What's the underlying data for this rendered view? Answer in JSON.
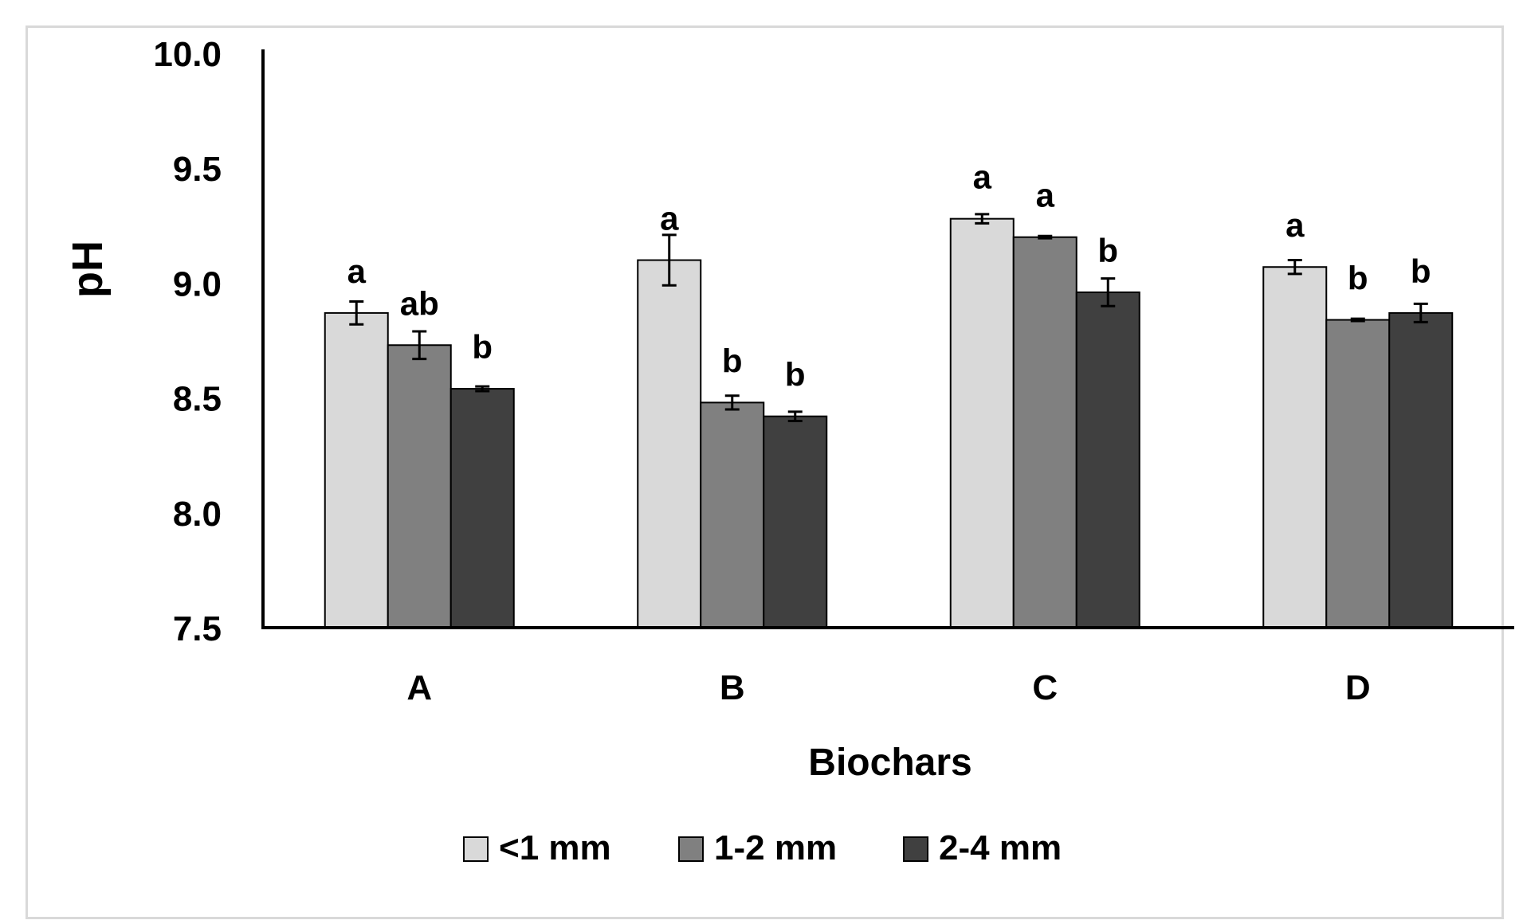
{
  "chart_data": {
    "type": "bar",
    "title": "",
    "xlabel": "Biochars",
    "ylabel": "pH",
    "ylim": [
      7.5,
      10.0
    ],
    "yticks": [
      7.5,
      8.0,
      8.5,
      9.0,
      9.5,
      10.0
    ],
    "ytick_labels": [
      "7.5",
      "8.0",
      "8.5",
      "9.0",
      "9.5",
      "10.0"
    ],
    "categories": [
      "A",
      "B",
      "C",
      "D"
    ],
    "grid": false,
    "legend_position": "bottom",
    "series": [
      {
        "name": "<1 mm",
        "color": "#d9d9d9",
        "values": [
          8.87,
          9.1,
          9.28,
          9.07
        ],
        "errors": [
          0.05,
          0.11,
          0.02,
          0.03
        ],
        "letters": [
          "a",
          "a",
          "a",
          "a"
        ]
      },
      {
        "name": "1-2 mm",
        "color": "#808080",
        "values": [
          8.73,
          8.48,
          9.2,
          8.84
        ],
        "errors": [
          0.06,
          0.03,
          0.005,
          0.005
        ],
        "letters": [
          "ab",
          "b",
          "a",
          "b"
        ]
      },
      {
        "name": "2-4 mm",
        "color": "#404040",
        "values": [
          8.54,
          8.42,
          8.96,
          8.87
        ],
        "errors": [
          0.01,
          0.02,
          0.06,
          0.04
        ],
        "letters": [
          "b",
          "b",
          "b",
          "b"
        ]
      }
    ]
  }
}
